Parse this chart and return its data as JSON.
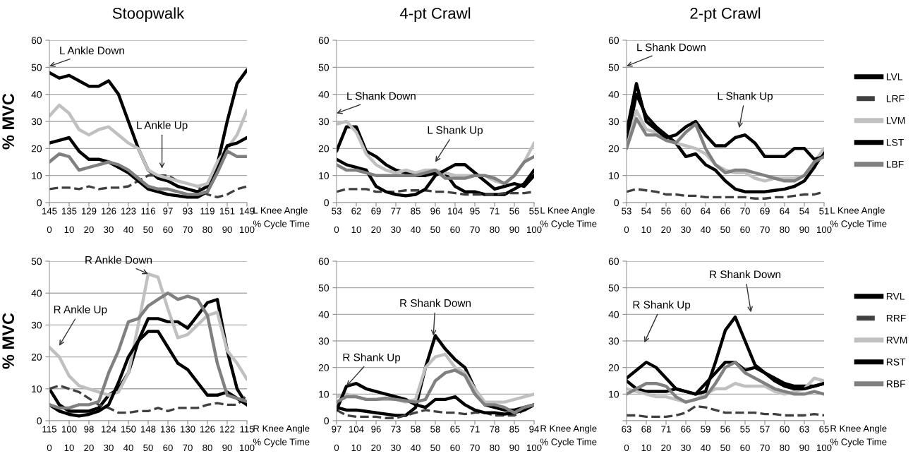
{
  "chart_data": [
    {
      "type": "line",
      "title": "Stoopwalk",
      "ylabel": "% MVC",
      "xlabel": "L Knee Angle",
      "x2label": "% Cycle Time",
      "categories": [
        "145",
        null,
        "135",
        null,
        "129",
        null,
        "126",
        null,
        "123",
        null,
        "116",
        null,
        "97",
        null,
        "93",
        null,
        "119",
        null,
        "151",
        null,
        "149"
      ],
      "x2lim": [
        0,
        100
      ],
      "x2ticks": [
        0,
        10,
        20,
        30,
        40,
        50,
        60,
        70,
        80,
        90,
        100
      ],
      "ylim": [
        0,
        60
      ],
      "yticks": [
        0,
        10,
        20,
        30,
        40,
        50,
        60
      ],
      "grid": "y",
      "legend": false,
      "series": [
        {
          "color": "#000000",
          "values": [
            48,
            46,
            47,
            45,
            43,
            43,
            45,
            40,
            30,
            20,
            12,
            9,
            8,
            6,
            5,
            4,
            6,
            14,
            30,
            44,
            49
          ]
        },
        {
          "color": "#404040",
          "line_style": "dashed",
          "values": [
            5,
            5.5,
            5.5,
            5,
            6,
            5,
            5.5,
            5.5,
            6,
            8,
            10,
            10,
            10,
            8,
            7,
            6,
            3,
            2,
            3,
            5,
            6
          ]
        },
        {
          "color": "#c0c0c0",
          "values": [
            32,
            36,
            33,
            27,
            25,
            27,
            28,
            25,
            22,
            20,
            12,
            10,
            9,
            8,
            7,
            6,
            7,
            15,
            20,
            25,
            34
          ]
        },
        {
          "color": "#000000",
          "values": [
            22,
            23,
            24,
            19,
            16,
            16,
            15,
            13,
            11,
            8,
            5,
            4,
            3,
            2.5,
            2,
            2,
            4,
            12,
            21,
            22,
            24
          ]
        },
        {
          "color": "#808080",
          "values": [
            15,
            18,
            17,
            12,
            13,
            14,
            15,
            14,
            12,
            9,
            6,
            5,
            5,
            4,
            3,
            3,
            4,
            11,
            19,
            17,
            17
          ]
        }
      ],
      "annotations": [
        "L Ankle Down",
        "L Ankle Up"
      ]
    },
    {
      "type": "line",
      "title": "4-pt Crawl",
      "xlabel": "L Knee Angle",
      "x2label": "% Cycle Time",
      "categories": [
        "53",
        null,
        "62",
        null,
        "69",
        null,
        "77",
        null,
        "85",
        null,
        "96",
        null,
        "104",
        null,
        "95",
        null,
        "71",
        null,
        "56",
        null,
        "55"
      ],
      "x2lim": [
        0,
        100
      ],
      "x2ticks": [
        0,
        10,
        20,
        30,
        40,
        50,
        60,
        70,
        80,
        90,
        100
      ],
      "ylim": [
        0,
        60
      ],
      "yticks": [
        0,
        10,
        20,
        30,
        40,
        50,
        60
      ],
      "grid": "y",
      "legend": false,
      "series": [
        {
          "color": "#000000",
          "values": [
            19,
            28,
            28,
            19,
            17,
            14,
            12,
            11,
            10,
            10,
            11,
            11,
            6,
            4,
            4,
            3,
            3,
            3,
            5,
            7,
            12
          ]
        },
        {
          "color": "#404040",
          "line_style": "dashed",
          "values": [
            4,
            5,
            5,
            5,
            4,
            4,
            4,
            4.5,
            4.5,
            4.5,
            4,
            4,
            3.5,
            3,
            3,
            3,
            3,
            3.5,
            3.5,
            3.5,
            4
          ]
        },
        {
          "color": "#c0c0c0",
          "values": [
            29,
            30,
            26,
            18,
            14,
            12,
            11,
            12,
            11,
            12,
            12,
            11,
            10,
            10,
            10,
            10,
            8,
            7,
            10,
            15,
            22
          ]
        },
        {
          "color": "#000000",
          "values": [
            16,
            14,
            13,
            12,
            6,
            4,
            3,
            2.5,
            3,
            5,
            10,
            12,
            14,
            14,
            11,
            8,
            5,
            6,
            7,
            6,
            10
          ]
        },
        {
          "color": "#808080",
          "values": [
            14,
            12,
            12,
            11,
            10,
            10,
            10,
            10,
            10,
            11,
            12,
            9,
            9,
            9,
            10,
            10,
            9,
            7,
            10,
            15,
            17
          ]
        }
      ],
      "annotations": [
        "L Shank Down",
        "L Shank Up"
      ]
    },
    {
      "type": "line",
      "title": "2-pt Crawl",
      "xlabel": "L Knee Angle",
      "x2label": "% Cycle Time",
      "categories": [
        "53",
        null,
        "54",
        null,
        "56",
        null,
        "60",
        null,
        "64",
        null,
        "66",
        null,
        "70",
        null,
        "69",
        null,
        "64",
        null,
        "54",
        null,
        "51"
      ],
      "x2lim": [
        0,
        100
      ],
      "x2ticks": [
        0,
        10,
        20,
        30,
        40,
        50,
        60,
        70,
        80,
        90,
        100
      ],
      "ylim": [
        0,
        60
      ],
      "yticks": [
        0,
        10,
        20,
        30,
        40,
        50,
        60
      ],
      "grid": "y",
      "legend": "right",
      "series": [
        {
          "name": "LVL",
          "color": "#000000",
          "values": [
            22,
            40,
            32,
            28,
            25,
            22,
            17,
            18,
            14,
            12,
            8,
            5,
            4,
            4,
            4,
            4.5,
            5,
            6,
            8,
            13,
            19
          ]
        },
        {
          "name": "LRF",
          "color": "#404040",
          "line_style": "dashed",
          "values": [
            4,
            5,
            4.5,
            4,
            3,
            3,
            2.5,
            2.5,
            2,
            2,
            2,
            2,
            2,
            1.5,
            1.5,
            2,
            2,
            2.5,
            3,
            3,
            4
          ]
        },
        {
          "name": "LVM",
          "color": "#c0c0c0",
          "values": [
            20,
            34,
            27,
            26,
            23,
            22,
            21,
            20,
            18,
            14,
            12,
            11,
            11,
            9,
            8,
            9,
            9,
            9,
            10,
            15,
            20
          ]
        },
        {
          "name": "LST",
          "color": "#000000",
          "values": [
            26,
            44,
            30,
            27,
            24,
            25,
            28,
            30,
            25,
            21,
            21,
            24,
            25,
            22,
            17,
            17,
            17,
            20,
            20,
            16,
            17
          ]
        },
        {
          "name": "LBF",
          "color": "#808080",
          "values": [
            20,
            31,
            25,
            25,
            23,
            22,
            26,
            29,
            20,
            14,
            11,
            12,
            12,
            11,
            10,
            9,
            8,
            8,
            10,
            15,
            17
          ]
        }
      ],
      "annotations": [
        "L Shank Down",
        "L Shank Up"
      ]
    },
    {
      "type": "line",
      "ylabel": "% MVC",
      "xlabel": "R Knee Angle",
      "x2label": "% Cycle Time",
      "categories": [
        "115",
        null,
        "100",
        null,
        "98",
        null,
        "124",
        null,
        "150",
        null,
        "148",
        null,
        "136",
        null,
        "130",
        null,
        "126",
        null,
        "122",
        null,
        "115"
      ],
      "x2lim": [
        0,
        100
      ],
      "x2ticks": [
        0,
        10,
        20,
        30,
        40,
        50,
        60,
        70,
        80,
        90,
        100
      ],
      "ylim": [
        0,
        50
      ],
      "yticks": [
        0,
        10,
        20,
        30,
        40,
        50
      ],
      "grid": "y",
      "legend": false,
      "series": [
        {
          "color": "#000000",
          "values": [
            10,
            5,
            3,
            3,
            3,
            4,
            8,
            10,
            15,
            25,
            32,
            32,
            31,
            31,
            29,
            33,
            37,
            38,
            22,
            10,
            5
          ]
        },
        {
          "color": "#404040",
          "line_style": "dashed",
          "values": [
            10,
            11,
            10,
            9,
            7,
            5,
            4,
            2.5,
            2.5,
            3,
            3,
            4,
            3,
            4,
            4,
            4,
            5,
            5.5,
            5,
            5,
            8
          ]
        },
        {
          "color": "#c0c0c0",
          "values": [
            23,
            20,
            14,
            11,
            10,
            9,
            8,
            9,
            15,
            30,
            46,
            45,
            35,
            26,
            27,
            30,
            33,
            34,
            22,
            18,
            13
          ]
        },
        {
          "color": "#000000",
          "values": [
            5,
            3,
            2,
            1.5,
            2,
            3,
            5,
            12,
            20,
            25,
            28,
            28,
            23,
            18,
            16,
            12,
            8,
            8,
            9,
            7,
            5
          ]
        },
        {
          "color": "#808080",
          "values": [
            5,
            4,
            4,
            5,
            5,
            6,
            15,
            22,
            31,
            32,
            36,
            38,
            40,
            38,
            39,
            38,
            33,
            18,
            8,
            7,
            6
          ]
        }
      ],
      "annotations": [
        "R Ankle Up",
        {
          "text": "R Ankle Down",
          "x": "148",
          "y": 46
        }
      ]
    },
    {
      "type": "line",
      "xlabel": "R Knee Angle",
      "x2label": "% Cycle Time",
      "categories": [
        "97",
        null,
        "104",
        null,
        "96",
        null,
        "73",
        null,
        "58",
        null,
        "58",
        null,
        "65",
        null,
        "71",
        null,
        "78",
        null,
        "85",
        null,
        "94"
      ],
      "x2lim": [
        0,
        100
      ],
      "x2ticks": [
        0,
        10,
        20,
        30,
        40,
        50,
        60,
        70,
        80,
        90,
        100
      ],
      "ylim": [
        0,
        60
      ],
      "yticks": [
        0,
        10,
        20,
        30,
        40,
        50,
        60
      ],
      "grid": "y",
      "legend": false,
      "series": [
        {
          "color": "#000000",
          "values": [
            5,
            4,
            4,
            3.5,
            3,
            2.5,
            2,
            2,
            5,
            20,
            32,
            27,
            23,
            20,
            12,
            6,
            5,
            4,
            4,
            5,
            6
          ]
        },
        {
          "color": "#404040",
          "line_style": "dashed",
          "values": [
            4,
            2,
            1.5,
            1.5,
            1.5,
            1,
            1,
            2,
            3,
            4,
            3.5,
            3,
            3,
            2.5,
            3,
            3,
            2,
            2,
            2,
            4,
            6
          ]
        },
        {
          "color": "#c0c0c0",
          "values": [
            9,
            10,
            9,
            8,
            8,
            8,
            8,
            7,
            8,
            20,
            24,
            25,
            20,
            18,
            12,
            7,
            7,
            7,
            8,
            9,
            10
          ]
        },
        {
          "color": "#000000",
          "values": [
            4,
            13,
            14,
            12,
            11,
            10,
            9,
            8,
            6,
            5,
            8,
            8,
            9,
            6,
            4,
            3,
            3,
            2.5,
            3,
            4,
            6
          ]
        },
        {
          "color": "#808080",
          "values": [
            7,
            9,
            9,
            8,
            8,
            8.5,
            8,
            7.5,
            7,
            8,
            15,
            18,
            19,
            17,
            10,
            6,
            6,
            5,
            3,
            5,
            6
          ]
        }
      ],
      "annotations": [
        {
          "text": "R Shank Up",
          "y": 13
        },
        {
          "text": "R Shank Down",
          "y": 32
        }
      ]
    },
    {
      "type": "line",
      "xlabel": "R Knee Angle",
      "x2label": "% Cycle Time",
      "categories": [
        "63",
        null,
        "68",
        null,
        "71",
        null,
        "66",
        null,
        "59",
        null,
        "56",
        null,
        "55",
        null,
        "57",
        null,
        "60",
        null,
        "63",
        null,
        "65"
      ],
      "x2lim": [
        0,
        100
      ],
      "x2ticks": [
        0,
        10,
        20,
        30,
        40,
        50,
        60,
        70,
        80,
        90,
        100
      ],
      "ylim": [
        0,
        60
      ],
      "yticks": [
        {
          "value": 0,
          "label": null
        },
        10,
        20,
        30,
        40,
        50,
        60
      ],
      "grid": "y",
      "legend": "right",
      "series": [
        {
          "name": "RVL",
          "color": "#000000",
          "values": [
            15,
            12,
            11,
            11,
            11,
            12,
            11,
            10,
            14,
            18,
            22,
            22,
            19,
            20,
            18,
            16,
            14,
            13,
            13,
            13,
            14
          ]
        },
        {
          "name": "RRF",
          "color": "#404040",
          "line_style": "dashed",
          "values": [
            2,
            2,
            1.5,
            1.5,
            1.5,
            2,
            3,
            5.5,
            5,
            4,
            3,
            3,
            3,
            3,
            2.5,
            2.5,
            2,
            2,
            2,
            2.5,
            2
          ]
        },
        {
          "name": "RVM",
          "color": "#c0c0c0",
          "values": [
            12,
            11,
            10,
            9,
            9,
            8,
            7,
            8,
            10,
            12,
            12,
            14,
            13,
            13,
            13,
            11,
            10,
            11,
            12,
            16,
            15
          ]
        },
        {
          "name": "RST",
          "color": "#000000",
          "values": [
            16,
            19,
            22,
            20,
            16,
            12,
            11,
            10,
            11,
            22,
            34,
            39,
            30,
            21,
            18,
            15,
            13,
            12,
            12,
            13,
            14
          ]
        },
        {
          "name": "RBF",
          "color": "#808080",
          "values": [
            10,
            12,
            14,
            14,
            13,
            9,
            7,
            8,
            9,
            14,
            20,
            22,
            18,
            16,
            14,
            12,
            11,
            10,
            10,
            11,
            10
          ]
        }
      ],
      "annotations": [
        "R Shank Up",
        "R Shank Down"
      ]
    }
  ]
}
